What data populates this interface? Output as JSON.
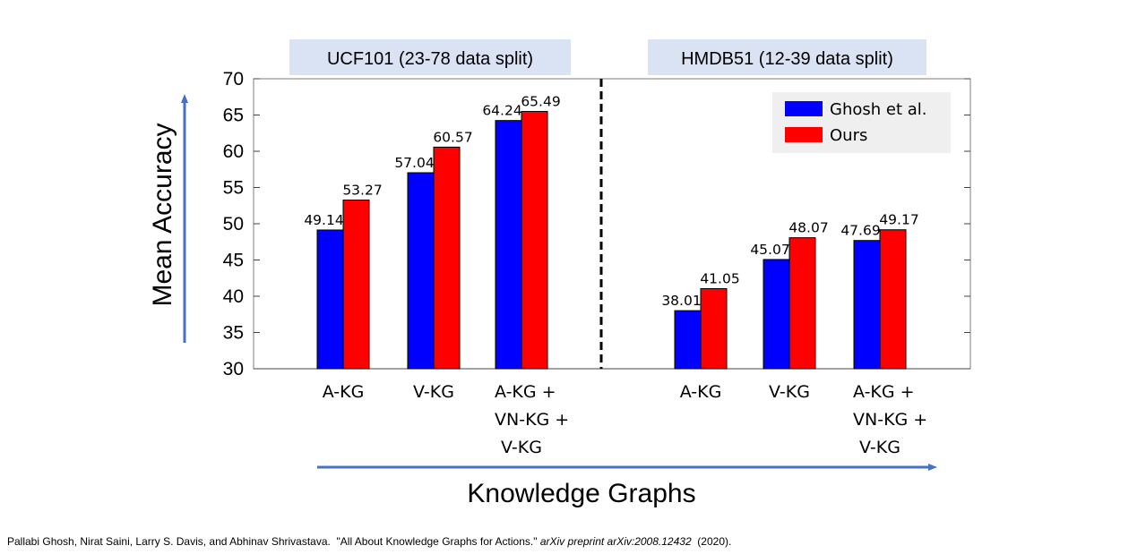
{
  "chart_data": {
    "type": "bar",
    "ylabel": "Mean Accuracy",
    "xlabel": "Knowledge Graphs",
    "ylim": [
      30,
      70
    ],
    "yticks": [
      30,
      35,
      40,
      45,
      50,
      55,
      60,
      65,
      70
    ],
    "legend_position": "top-right",
    "series": [
      {
        "name": "Ghosh et al.",
        "color": "#0000ff"
      },
      {
        "name": "Ours",
        "color": "#ff0000"
      }
    ],
    "groups": [
      {
        "title": "UCF101 (23-78 data split)",
        "categories": [
          [
            "A-KG"
          ],
          [
            "V-KG"
          ],
          [
            "A-KG +",
            "VN-KG +",
            "V-KG"
          ]
        ],
        "values": {
          "Ghosh et al.": [
            49.14,
            57.04,
            64.24
          ],
          "Ours": [
            53.27,
            60.57,
            65.49
          ]
        },
        "labels": {
          "Ghosh et al.": [
            "49.14",
            "57.04",
            "64.24"
          ],
          "Ours": [
            "53.27",
            "60.57",
            "65.49"
          ]
        }
      },
      {
        "title": "HMDB51 (12-39 data split)",
        "categories": [
          [
            "A-KG"
          ],
          [
            "V-KG"
          ],
          [
            "A-KG +",
            "VN-KG +",
            "V-KG"
          ]
        ],
        "values": {
          "Ghosh et al.": [
            38.01,
            45.07,
            47.69
          ],
          "Ours": [
            41.05,
            48.07,
            49.17
          ]
        },
        "labels": {
          "Ghosh et al.": [
            "38.01",
            "45.07",
            "47.69"
          ],
          "Ours": [
            "41.05",
            "48.07",
            "49.17"
          ]
        }
      }
    ]
  },
  "citation": {
    "authors": "Pallabi Ghosh, Nirat Saini, Larry S. Davis, and Abhinav Shrivastava.",
    "title": "\"All About Knowledge Graphs for Actions.\"",
    "venue": "arXiv preprint arXiv:2008.12432",
    "year": "(2020)."
  },
  "colors": {
    "panel_title_bg": "#dae3f3",
    "arrow": "#4472c4",
    "legend_bg": "#efefef"
  }
}
